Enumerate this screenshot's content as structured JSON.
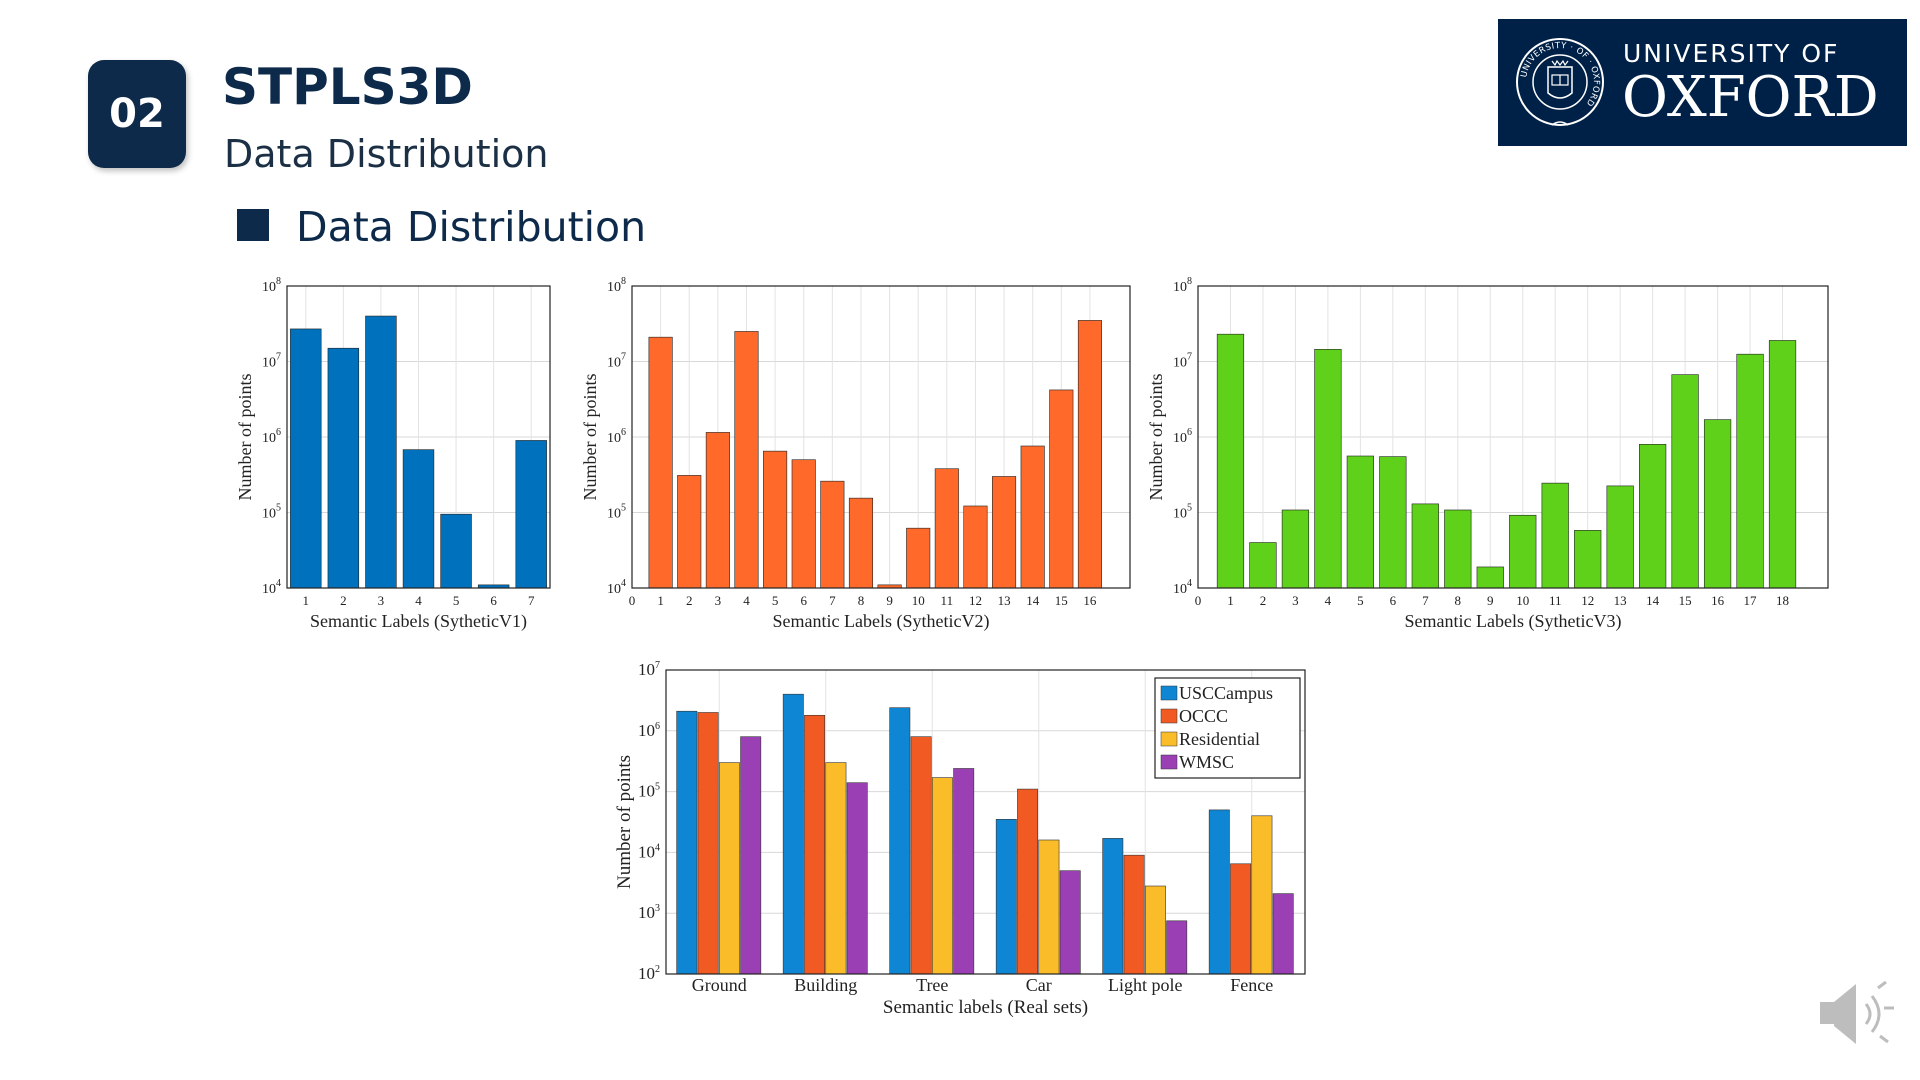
{
  "header": {
    "section_number": "02",
    "title": "STPLS3D",
    "subtitle": "Data Distribution"
  },
  "bullet": {
    "text": "Data Distribution"
  },
  "logo": {
    "line1": "UNIVERSITY OF",
    "line2": "OXFORD",
    "ring_text": "UNIVERSITY · OF · OXFORD",
    "icon": "oxford-crest-icon"
  },
  "colors": {
    "navy": "#0e2a4a",
    "v1": "#0072bd",
    "v2": "#ff6a2a",
    "v3": "#5fd11b",
    "usc": "#0e86d4",
    "occc": "#f15a22",
    "res": "#fbbc2a",
    "wmsc": "#9b3fb5"
  },
  "speaker": {
    "icon": "speaker-icon"
  },
  "chart_data": [
    {
      "type": "bar",
      "yscale": "log",
      "xlabel": "Semantic Labels (SytheticV1)",
      "ylabel": "Number of points",
      "ylim": [
        10000,
        100000000
      ],
      "categories": [
        "1",
        "2",
        "3",
        "4",
        "5",
        "6",
        "7"
      ],
      "values": [
        27000000,
        15000000,
        40000000,
        680000,
        95000,
        11000,
        900000
      ],
      "color": "#0072bd"
    },
    {
      "type": "bar",
      "yscale": "log",
      "xlabel": "Semantic Labels (SytheticV2)",
      "ylabel": "Number of points",
      "ylim": [
        10000,
        100000000
      ],
      "tick_labels": [
        "0",
        "1",
        "2",
        "3",
        "4",
        "5",
        "6",
        "7",
        "8",
        "9",
        "10",
        "11",
        "12",
        "13",
        "14",
        "15",
        "16"
      ],
      "categories": [
        "1",
        "2",
        "3",
        "4",
        "5",
        "6",
        "7",
        "8",
        "9",
        "10",
        "11",
        "12",
        "13",
        "14",
        "15",
        "16"
      ],
      "values": [
        21000000,
        310000,
        1150000,
        25000000,
        650000,
        500000,
        260000,
        155000,
        11000,
        62000,
        380000,
        122000,
        300000,
        760000,
        4200000,
        35000000
      ],
      "color": "#ff6a2a"
    },
    {
      "type": "bar",
      "yscale": "log",
      "xlabel": "Semantic Labels (SytheticV3)",
      "ylabel": "Number of points",
      "ylim": [
        10000,
        100000000
      ],
      "tick_labels": [
        "0",
        "1",
        "2",
        "3",
        "4",
        "5",
        "6",
        "7",
        "8",
        "9",
        "10",
        "11",
        "12",
        "13",
        "14",
        "15",
        "16",
        "17",
        "18"
      ],
      "categories": [
        "1",
        "2",
        "3",
        "4",
        "5",
        "6",
        "7",
        "8",
        "9",
        "10",
        "11",
        "12",
        "13",
        "14",
        "15",
        "16",
        "17",
        "18"
      ],
      "values": [
        23000000,
        40000,
        108000,
        14500000,
        560000,
        550000,
        130000,
        108000,
        19000,
        92000,
        245000,
        58000,
        225000,
        800000,
        6700000,
        1700000,
        12500000,
        19000000
      ],
      "color": "#5fd11b"
    },
    {
      "type": "bar",
      "yscale": "log",
      "xlabel": "Semantic labels (Real sets)",
      "ylabel": "Number of points",
      "ylim": [
        100,
        10000000
      ],
      "categories": [
        "Ground",
        "Building",
        "Tree",
        "Car",
        "Light pole",
        "Fence"
      ],
      "series": [
        {
          "name": "USCCampus",
          "color": "#0e86d4",
          "values": [
            2100000,
            4000000,
            2400000,
            35000,
            17000,
            50000
          ]
        },
        {
          "name": "OCCC",
          "color": "#f15a22",
          "values": [
            2000000,
            1800000,
            800000,
            110000,
            9000,
            6500
          ]
        },
        {
          "name": "Residential",
          "color": "#fbbc2a",
          "values": [
            300000,
            300000,
            170000,
            16000,
            2800,
            40000
          ]
        },
        {
          "name": "WMSC",
          "color": "#9b3fb5",
          "values": [
            800000,
            140000,
            240000,
            5000,
            750,
            2100
          ]
        }
      ],
      "legend": "top-right"
    }
  ]
}
